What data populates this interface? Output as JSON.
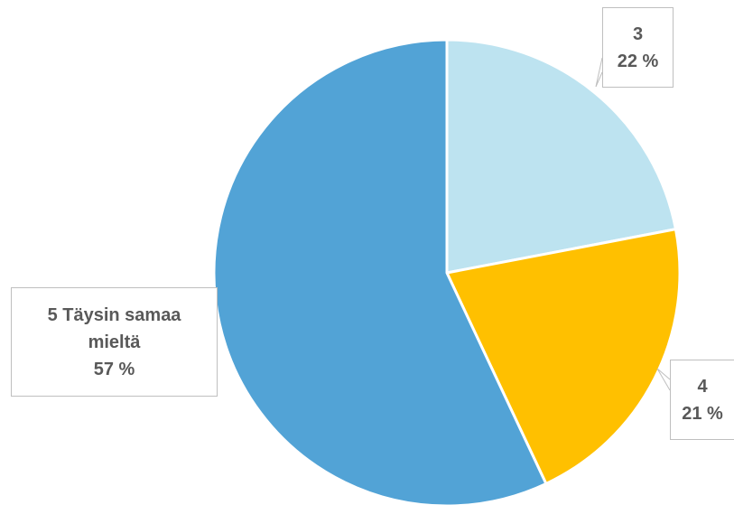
{
  "chart_data": {
    "type": "pie",
    "categories": [
      "3",
      "4",
      "5 Täysin samaa mieltä"
    ],
    "values": [
      22,
      21,
      57
    ],
    "value_labels": [
      "22 %",
      "21 %",
      "57 %"
    ],
    "colors": [
      "#bde3f0",
      "#ffc000",
      "#52a3d6"
    ]
  }
}
